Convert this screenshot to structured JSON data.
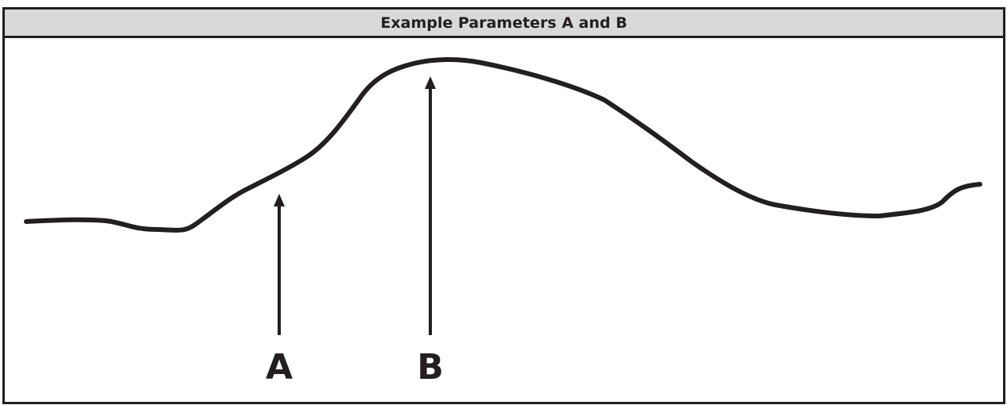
{
  "title": "Example Parameters A and B",
  "markers": [
    {
      "label": "A"
    },
    {
      "label": "B"
    }
  ],
  "colors": {
    "stroke": "#231f20",
    "header_bg": "#d9d9db",
    "background": "#ffffff"
  }
}
